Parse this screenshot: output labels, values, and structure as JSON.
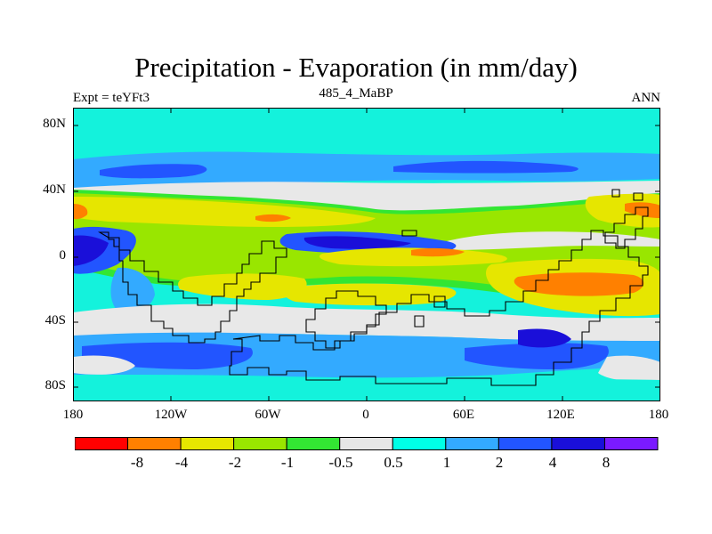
{
  "header": {
    "title": "Precipitation - Evaporation (in mm/day)",
    "left_label": "Expt = teYFt3",
    "center_label": "485_4_MaBP",
    "right_label": "ANN"
  },
  "map": {
    "lat_labels": [
      "80N",
      "40N",
      "0",
      "40S",
      "80S"
    ],
    "lon_labels": [
      "180",
      "120W",
      "60W",
      "0",
      "60E",
      "120E",
      "180"
    ]
  },
  "colorbar": {
    "labels": [
      "-8",
      "-4",
      "-2",
      "-1",
      "-0.5",
      "0.5",
      "1",
      "2",
      "4",
      "8"
    ],
    "colors": [
      "#ff0000",
      "#ff8000",
      "#e6e600",
      "#99e600",
      "#33e633",
      "#e6e6e6",
      "#00ffe6",
      "#33aaff",
      "#2255ff",
      "#1a0fd9",
      "#7a1aff"
    ]
  },
  "palette": {
    "bg_cyan": "#14f2dc",
    "white": "#e8e8e8",
    "green": "#33e633",
    "lime": "#99e600",
    "yellow": "#e6e600",
    "orange": "#ff8000",
    "light_blue": "#33aaff",
    "blue": "#2255ff",
    "dark_blue": "#1a0fd9"
  }
}
